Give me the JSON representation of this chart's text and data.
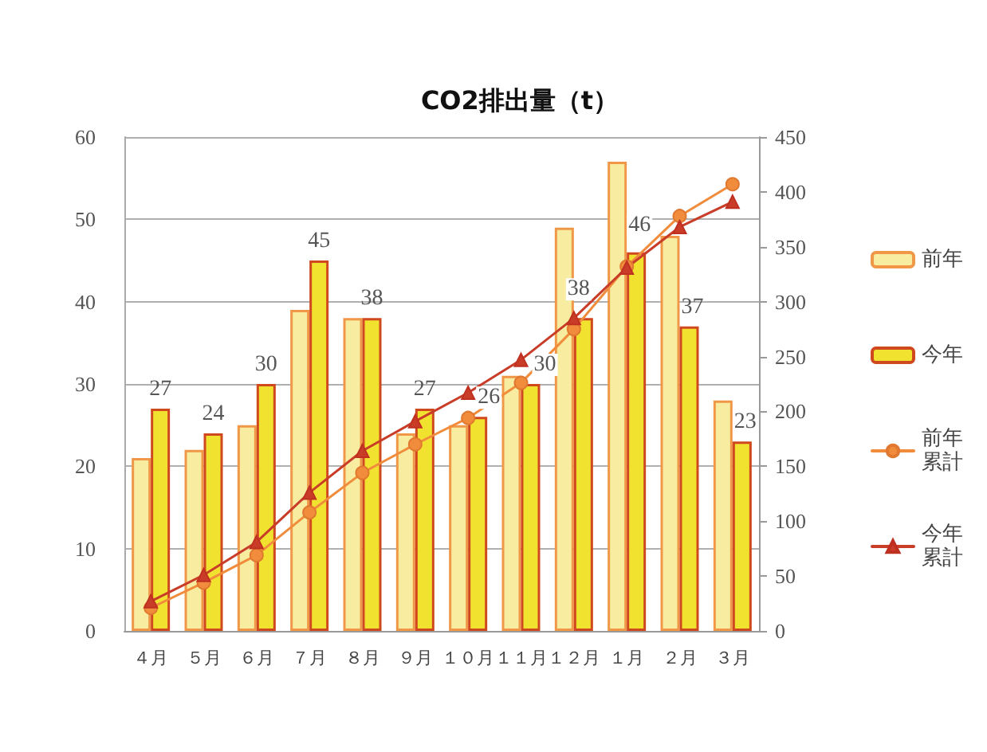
{
  "chart_data": {
    "type": "bar",
    "title": "CO2排出量（t）",
    "categories": [
      "４月",
      "５月",
      "６月",
      "７月",
      "８月",
      "９月",
      "１０月",
      "１１月",
      "１２月",
      "１月",
      "２月",
      "３月"
    ],
    "series": [
      {
        "name": "前年",
        "color": "#f7eca0",
        "values": [
          21,
          22,
          25,
          39,
          38,
          24,
          25,
          31,
          49,
          57,
          48,
          28
        ]
      },
      {
        "name": "今年",
        "color": "#f2e230",
        "values": [
          27,
          24,
          30,
          45,
          38,
          27,
          26,
          30,
          38,
          46,
          37,
          23
        ],
        "data_labels": true
      },
      {
        "name": "前年累計",
        "type": "line",
        "axis": "y2",
        "color": "#f08c3c",
        "marker": "circle",
        "values": [
          21,
          44,
          69,
          108,
          144,
          170,
          194,
          226,
          275,
          332,
          378,
          407
        ]
      },
      {
        "name": "今年累計",
        "type": "line",
        "axis": "y2",
        "color": "#c83c28",
        "marker": "triangle",
        "values": [
          27,
          51,
          81,
          126,
          164,
          191,
          217,
          247,
          285,
          331,
          368,
          391
        ]
      }
    ],
    "ylim": [
      0,
      60
    ],
    "yticks": [
      0,
      10,
      20,
      30,
      40,
      50,
      60
    ],
    "y2lim": [
      0,
      450
    ],
    "y2ticks": [
      0,
      50,
      100,
      150,
      200,
      250,
      300,
      350,
      400,
      450
    ],
    "grid": "y",
    "legend": "right"
  }
}
